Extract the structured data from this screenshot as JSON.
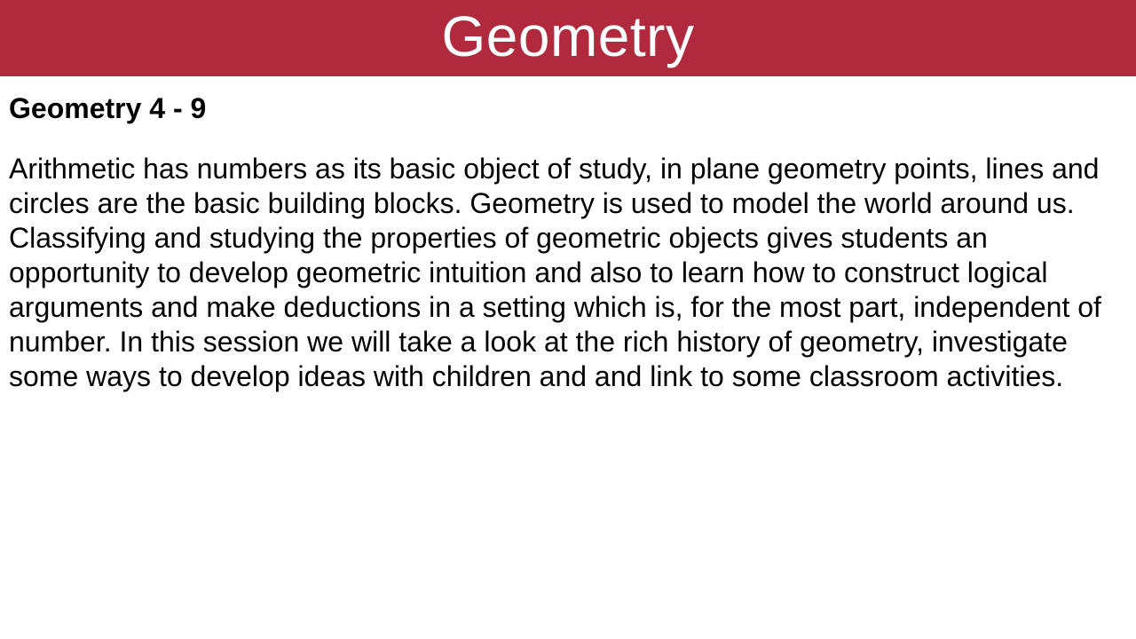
{
  "banner": {
    "title": "Geometry",
    "background_color": "#b0293c",
    "text_color": "#ffffff"
  },
  "content": {
    "subtitle": "Geometry 4 - 9",
    "body": "Arithmetic has numbers as its basic object of study, in plane geometry points, lines and circles are the basic building blocks. Geometry is used to model the world around us.  Classifying and studying the properties of geometric objects gives students an opportunity to develop geometric intuition and also to learn how to construct logical arguments and make deductions in a setting which is, for the most part, independent of number. In this session we will take a look at the rich history of geometry, investigate some ways to develop ideas with children and and link to some classroom activities.",
    "text_color": "#000000"
  },
  "page": {
    "background_color": "#ffffff"
  }
}
